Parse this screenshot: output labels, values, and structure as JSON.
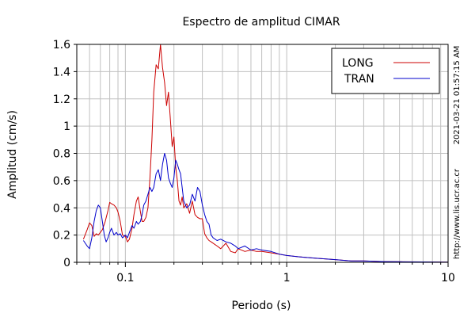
{
  "chart_data": {
    "type": "line",
    "title": "Espectro de amplitud CIMAR",
    "xlabel": "Periodo (s)",
    "ylabel": "Amplitud (cm/s)",
    "xscale": "log",
    "xlim": [
      0.05,
      10
    ],
    "ylim": [
      0,
      1.6
    ],
    "x_ticks": [
      0.1,
      1,
      10
    ],
    "x_tick_labels": [
      "0.1",
      "1",
      "10"
    ],
    "y_ticks": [
      0,
      0.2,
      0.4,
      0.6,
      0.8,
      1,
      1.2,
      1.4,
      1.6
    ],
    "y_tick_labels": [
      "0",
      "0.2",
      "0.4",
      "0.6",
      "0.8",
      "1",
      "1.2",
      "1.4",
      "1.6"
    ],
    "grid": true,
    "legend_position": "top-right",
    "series": [
      {
        "name": "LONG",
        "color": "#cc0000",
        "x": [
          0.055,
          0.058,
          0.06,
          0.062,
          0.064,
          0.066,
          0.068,
          0.07,
          0.072,
          0.075,
          0.078,
          0.08,
          0.082,
          0.085,
          0.088,
          0.09,
          0.093,
          0.096,
          0.1,
          0.103,
          0.106,
          0.11,
          0.113,
          0.117,
          0.12,
          0.124,
          0.127,
          0.13,
          0.134,
          0.138,
          0.142,
          0.146,
          0.15,
          0.155,
          0.16,
          0.165,
          0.17,
          0.175,
          0.18,
          0.185,
          0.19,
          0.195,
          0.2,
          0.205,
          0.21,
          0.215,
          0.22,
          0.225,
          0.23,
          0.24,
          0.25,
          0.26,
          0.27,
          0.28,
          0.29,
          0.3,
          0.31,
          0.32,
          0.33,
          0.34,
          0.35,
          0.37,
          0.39,
          0.42,
          0.45,
          0.48,
          0.5,
          0.55,
          0.6,
          0.65,
          0.7,
          0.8,
          0.9,
          1.0,
          1.2,
          1.5,
          2.0,
          2.5,
          3.0,
          4.0,
          5.0,
          7.0,
          10.0
        ],
        "values": [
          0.17,
          0.24,
          0.29,
          0.27,
          0.19,
          0.21,
          0.2,
          0.22,
          0.24,
          0.3,
          0.38,
          0.44,
          0.43,
          0.42,
          0.4,
          0.37,
          0.3,
          0.2,
          0.19,
          0.15,
          0.17,
          0.25,
          0.35,
          0.45,
          0.48,
          0.37,
          0.3,
          0.3,
          0.33,
          0.4,
          0.62,
          0.9,
          1.25,
          1.45,
          1.42,
          1.6,
          1.43,
          1.32,
          1.15,
          1.25,
          1.05,
          0.85,
          0.92,
          0.7,
          0.6,
          0.45,
          0.42,
          0.48,
          0.4,
          0.43,
          0.36,
          0.45,
          0.35,
          0.33,
          0.32,
          0.32,
          0.21,
          0.18,
          0.16,
          0.15,
          0.14,
          0.12,
          0.1,
          0.14,
          0.08,
          0.07,
          0.1,
          0.08,
          0.09,
          0.08,
          0.08,
          0.07,
          0.06,
          0.05,
          0.04,
          0.03,
          0.02,
          0.01,
          0.01,
          0.005,
          0.004,
          0.003,
          0.002
        ]
      },
      {
        "name": "TRAN",
        "color": "#0000cc",
        "x": [
          0.055,
          0.058,
          0.06,
          0.062,
          0.064,
          0.066,
          0.068,
          0.07,
          0.072,
          0.074,
          0.076,
          0.078,
          0.08,
          0.082,
          0.085,
          0.088,
          0.09,
          0.093,
          0.096,
          0.1,
          0.103,
          0.106,
          0.11,
          0.113,
          0.117,
          0.12,
          0.124,
          0.127,
          0.13,
          0.134,
          0.138,
          0.142,
          0.146,
          0.15,
          0.155,
          0.16,
          0.165,
          0.17,
          0.175,
          0.18,
          0.185,
          0.19,
          0.195,
          0.2,
          0.205,
          0.21,
          0.215,
          0.22,
          0.225,
          0.23,
          0.24,
          0.25,
          0.26,
          0.27,
          0.28,
          0.29,
          0.3,
          0.31,
          0.32,
          0.33,
          0.34,
          0.35,
          0.37,
          0.39,
          0.42,
          0.45,
          0.48,
          0.5,
          0.55,
          0.6,
          0.65,
          0.7,
          0.8,
          0.9,
          1.0,
          1.2,
          1.5,
          2.0,
          2.5,
          3.0,
          4.0,
          5.0,
          7.0,
          10.0
        ],
        "values": [
          0.16,
          0.12,
          0.1,
          0.18,
          0.3,
          0.38,
          0.42,
          0.4,
          0.3,
          0.2,
          0.15,
          0.18,
          0.22,
          0.25,
          0.2,
          0.22,
          0.2,
          0.21,
          0.18,
          0.2,
          0.18,
          0.22,
          0.27,
          0.25,
          0.3,
          0.28,
          0.3,
          0.35,
          0.42,
          0.45,
          0.5,
          0.55,
          0.52,
          0.55,
          0.65,
          0.68,
          0.6,
          0.72,
          0.8,
          0.75,
          0.62,
          0.58,
          0.55,
          0.62,
          0.75,
          0.72,
          0.68,
          0.65,
          0.55,
          0.45,
          0.4,
          0.42,
          0.5,
          0.45,
          0.55,
          0.52,
          0.42,
          0.35,
          0.3,
          0.28,
          0.2,
          0.18,
          0.16,
          0.17,
          0.15,
          0.14,
          0.12,
          0.1,
          0.12,
          0.09,
          0.1,
          0.09,
          0.08,
          0.06,
          0.05,
          0.04,
          0.03,
          0.02,
          0.01,
          0.01,
          0.005,
          0.004,
          0.003,
          0.002
        ]
      }
    ]
  },
  "side_text": {
    "timestamp": "2021-03-21 01:57:15 AM",
    "url": "http://www.lis.ucr.ac.cr"
  }
}
